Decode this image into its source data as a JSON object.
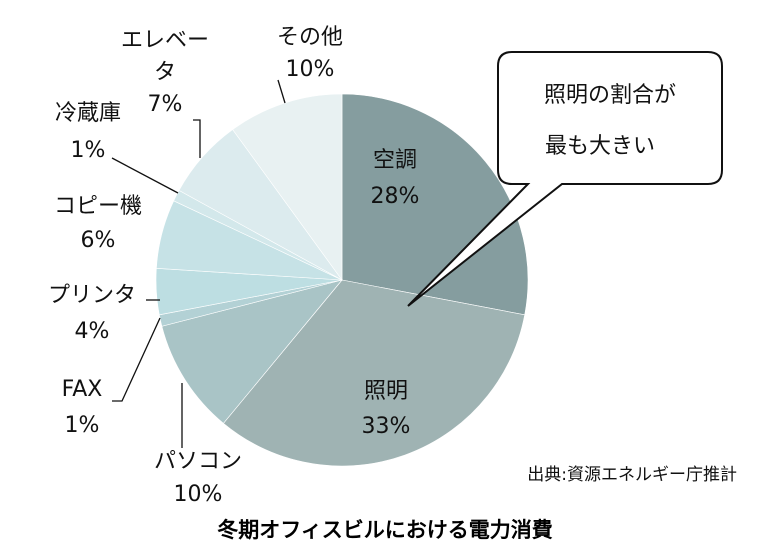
{
  "chart_data": {
    "type": "pie",
    "title": "冬期オフィスビルにおける電力消費",
    "source": "出典:資源エネルギー庁推計",
    "callout": [
      "照明の割合が",
      "最も大きい"
    ],
    "slices": [
      {
        "name": "空調",
        "value": 28,
        "pct": "28%",
        "color": "#859d9f"
      },
      {
        "name": "照明",
        "value": 33,
        "pct": "33%",
        "color": "#9fb3b3"
      },
      {
        "name": "パソコン",
        "value": 10,
        "pct": "10%",
        "color": "#a9c4c6"
      },
      {
        "name": "FAX",
        "value": 1,
        "pct": "1%",
        "color": "#b3d1d5"
      },
      {
        "name": "プリンタ",
        "value": 4,
        "pct": "4%",
        "color": "#bddee2"
      },
      {
        "name": "コピー機",
        "value": 6,
        "pct": "6%",
        "color": "#c6e2e6"
      },
      {
        "name": "冷蔵庫",
        "value": 1,
        "pct": "1%",
        "color": "#d3e8eb"
      },
      {
        "name": "エレベータ",
        "value": 7,
        "pct": "7%",
        "color": "#dcebee"
      },
      {
        "name": "その他",
        "value": 10,
        "pct": "10%",
        "color": "#e8f1f2"
      }
    ]
  }
}
